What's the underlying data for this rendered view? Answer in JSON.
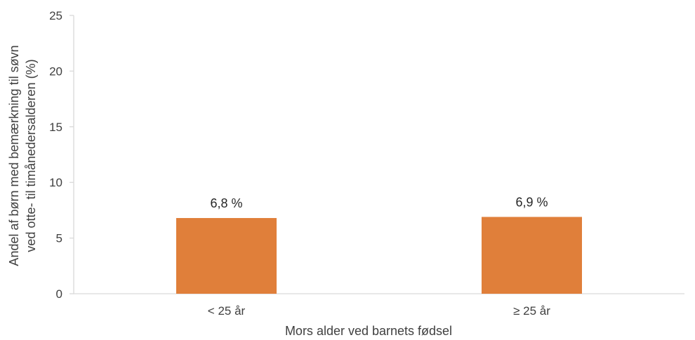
{
  "chart_data": {
    "type": "bar",
    "categories": [
      "< 25 år",
      "≥ 25 år"
    ],
    "values": [
      6.8,
      6.9
    ],
    "data_labels": [
      "6,8 %",
      "6,9 %"
    ],
    "title": "",
    "xlabel": "Mors alder ved barnets fødsel",
    "ylabel_lines": [
      "Andel af børn med bemærkning til søvn",
      "ved otte- til timånedersalderen (%)"
    ],
    "ylim": [
      0,
      25
    ],
    "yticks": [
      0,
      5,
      10,
      15,
      20,
      25
    ],
    "grid": false,
    "legend": "none",
    "colors": {
      "bar": "#E07F3A",
      "axis": "#D9D9D9"
    }
  }
}
